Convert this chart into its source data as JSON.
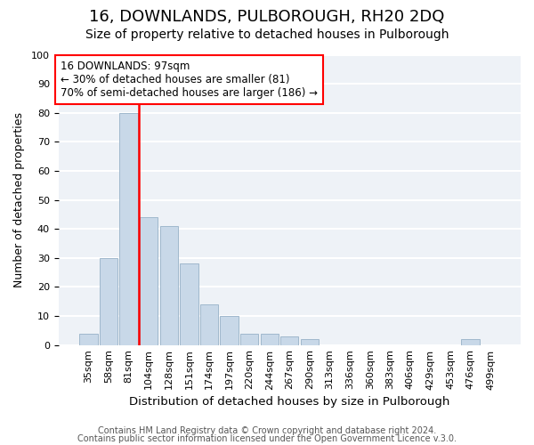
{
  "title": "16, DOWNLANDS, PULBOROUGH, RH20 2DQ",
  "subtitle": "Size of property relative to detached houses in Pulborough",
  "xlabel": "Distribution of detached houses by size in Pulborough",
  "ylabel": "Number of detached properties",
  "bar_color": "#c8d8e8",
  "bar_edge_color": "#a0b8cc",
  "vline_color": "red",
  "vline_idx": 3,
  "annotation_title": "16 DOWNLANDS: 97sqm",
  "annotation_line1": "← 30% of detached houses are smaller (81)",
  "annotation_line2": "70% of semi-detached houses are larger (186) →",
  "annotation_box_color": "white",
  "annotation_box_edge_color": "red",
  "categories": [
    "35sqm",
    "58sqm",
    "81sqm",
    "104sqm",
    "128sqm",
    "151sqm",
    "174sqm",
    "197sqm",
    "220sqm",
    "244sqm",
    "267sqm",
    "290sqm",
    "313sqm",
    "336sqm",
    "360sqm",
    "383sqm",
    "406sqm",
    "429sqm",
    "453sqm",
    "476sqm",
    "499sqm"
  ],
  "values": [
    4,
    30,
    80,
    44,
    41,
    28,
    14,
    10,
    4,
    4,
    3,
    2,
    0,
    0,
    0,
    0,
    0,
    0,
    0,
    2,
    0
  ],
  "ylim": [
    0,
    100
  ],
  "yticks": [
    0,
    10,
    20,
    30,
    40,
    50,
    60,
    70,
    80,
    90,
    100
  ],
  "footer1": "Contains HM Land Registry data © Crown copyright and database right 2024.",
  "footer2": "Contains public sector information licensed under the Open Government Licence v.3.0.",
  "background_color": "#eef2f7",
  "grid_color": "white",
  "title_fontsize": 13,
  "subtitle_fontsize": 10,
  "xlabel_fontsize": 9.5,
  "ylabel_fontsize": 9,
  "tick_fontsize": 8,
  "footer_fontsize": 7
}
